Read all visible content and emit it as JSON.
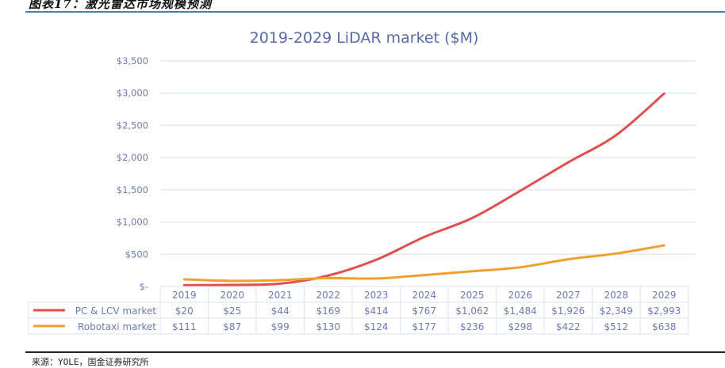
{
  "figure": {
    "caption": "图表17：激光雷达市场规模预测",
    "source": "来源：YOLE，国金证券研究所"
  },
  "colors": {
    "pc_lcv": "#e0504f",
    "robotaxi": "#f0a030",
    "text": "#6d7ab0",
    "grid": "#e6e8f0",
    "caption_rule": "#4f7ea3"
  },
  "chart_data": {
    "type": "line",
    "title": "2019-2029 LiDAR market ($M)",
    "xlabel": "",
    "ylabel": "",
    "ylim": [
      0,
      3500
    ],
    "grid": true,
    "legend_placement": "data-table-left",
    "categories": [
      "2019",
      "2020",
      "2021",
      "2022",
      "2023",
      "2024",
      "2025",
      "2026",
      "2027",
      "2028",
      "2029"
    ],
    "yticks": [
      {
        "value": 0,
        "label": "$-"
      },
      {
        "value": 500,
        "label": "$500"
      },
      {
        "value": 1000,
        "label": "$1,000"
      },
      {
        "value": 1500,
        "label": "$1,500"
      },
      {
        "value": 2000,
        "label": "$2,000"
      },
      {
        "value": 2500,
        "label": "$2,500"
      },
      {
        "value": 3000,
        "label": "$3,000"
      },
      {
        "value": 3500,
        "label": "$3,500"
      }
    ],
    "series": [
      {
        "name": "PC & LCV market",
        "color": "#e0504f",
        "values": [
          20,
          25,
          44,
          169,
          414,
          767,
          1062,
          1484,
          1926,
          2349,
          2993
        ],
        "labels": [
          "$20",
          "$25",
          "$44",
          "$169",
          "$414",
          "$767",
          "$1,062",
          "$1,484",
          "$1,926",
          "$2,349",
          "$2,993"
        ]
      },
      {
        "name": "Robotaxi market",
        "color": "#f0a030",
        "values": [
          111,
          87,
          99,
          130,
          124,
          177,
          236,
          298,
          422,
          512,
          638
        ],
        "labels": [
          "$111",
          "$87",
          "$99",
          "$130",
          "$124",
          "$177",
          "$236",
          "$298",
          "$422",
          "$512",
          "$638"
        ]
      }
    ]
  }
}
